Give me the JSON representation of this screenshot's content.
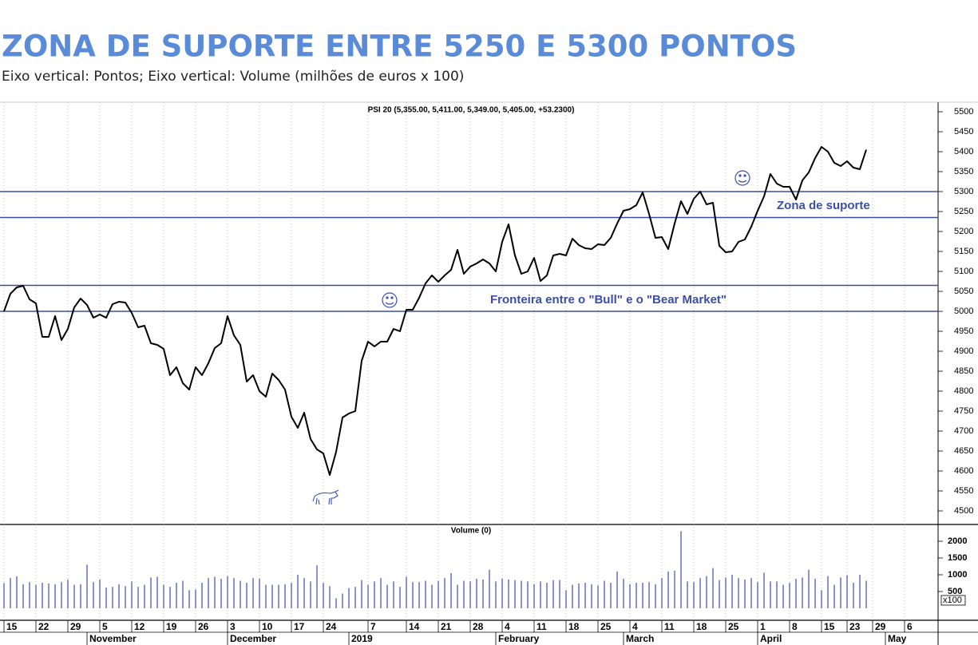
{
  "chart_data": {
    "type": "line",
    "title": "ZONA DE SUPORTE ENTRE 5250 E 5300 PONTOS",
    "subtitle": "Eixo vertical: Pontos; Eixo vertical: Volume (milhões de euros x 100)",
    "header": "PSI 20 (5,355.00, 5,411.00, 5,349.00, 5,405.00, +53.2300)",
    "categories": [
      "15",
      null,
      null,
      null,
      null,
      "22",
      null,
      null,
      null,
      null,
      "29",
      null,
      null,
      null,
      null,
      "5",
      null,
      null,
      null,
      null,
      "12",
      null,
      null,
      null,
      null,
      "19",
      null,
      null,
      null,
      null,
      "26",
      null,
      null,
      null,
      null,
      "3",
      null,
      null,
      null,
      null,
      "10",
      null,
      null,
      null,
      null,
      "17",
      null,
      null,
      null,
      null,
      "24",
      null,
      null,
      null,
      null,
      null,
      null,
      "7",
      null,
      null,
      null,
      null,
      null,
      "14",
      null,
      null,
      null,
      null,
      "21",
      null,
      null,
      null,
      null,
      "28",
      null,
      null,
      null,
      null,
      "4",
      null,
      null,
      null,
      null,
      "11",
      null,
      null,
      null,
      null,
      "18",
      null,
      null,
      null,
      null,
      "25",
      null,
      null,
      null,
      null,
      "4",
      null,
      null,
      null,
      null,
      "11",
      null,
      null,
      null,
      null,
      "18",
      null,
      null,
      null,
      null,
      "25",
      null,
      null,
      null,
      null,
      "1",
      null,
      null,
      null,
      null,
      "8",
      null,
      null,
      null,
      null,
      "15",
      null,
      null,
      null,
      "23",
      null,
      null,
      null,
      "29",
      null,
      null,
      null,
      null,
      "6",
      null,
      null,
      null,
      null
    ],
    "month_labels": [
      null,
      null,
      null,
      null,
      null,
      null,
      null,
      null,
      null,
      null,
      null,
      null,
      null,
      "November",
      null,
      null,
      null,
      null,
      null,
      null,
      null,
      null,
      null,
      null,
      null,
      null,
      null,
      null,
      null,
      null,
      null,
      null,
      null,
      null,
      null,
      "December",
      null,
      null,
      null,
      null,
      null,
      null,
      null,
      null,
      null,
      null,
      null,
      null,
      null,
      null,
      null,
      null,
      null,
      null,
      "2019",
      null,
      null,
      null,
      null,
      null,
      null,
      null,
      null,
      null,
      null,
      null,
      null,
      null,
      null,
      null,
      null,
      null,
      null,
      null,
      null,
      null,
      null,
      "February",
      null,
      null,
      null,
      null,
      null,
      null,
      null,
      null,
      null,
      null,
      null,
      null,
      null,
      null,
      null,
      null,
      null,
      null,
      null,
      "March",
      null,
      null,
      null,
      null,
      null,
      null,
      null,
      null,
      null,
      null,
      null,
      null,
      null,
      null,
      null,
      null,
      null,
      null,
      null,
      null,
      "April",
      null,
      null,
      null,
      null,
      null,
      null,
      null,
      null,
      null,
      null,
      null,
      null,
      null,
      null,
      null,
      null,
      null,
      null,
      null,
      "May",
      null,
      null,
      null,
      null,
      null,
      null,
      null
    ],
    "series": [
      {
        "color": "#000000",
        "values": [
          5000,
          5044,
          5060,
          5064,
          5030,
          5020,
          4936,
          4936,
          4988,
          4928,
          4956,
          5010,
          5032,
          5016,
          4984,
          4992,
          4984,
          5018,
          5024,
          5022,
          4996,
          4960,
          4964,
          4920,
          4916,
          4906,
          4840,
          4860,
          4820,
          4804,
          4860,
          4840,
          4870,
          4908,
          4920,
          4988,
          4940,
          4916,
          4824,
          4840,
          4800,
          4786,
          4844,
          4828,
          4804,
          4736,
          4708,
          4746,
          4680,
          4654,
          4644,
          4590,
          4648,
          4734,
          4744,
          4750,
          4876,
          4924,
          4912,
          4924,
          4924,
          4956,
          4950,
          5004,
          5004,
          5034,
          5070,
          5090,
          5074,
          5090,
          5104,
          5154,
          5094,
          5112,
          5120,
          5130,
          5120,
          5100,
          5174,
          5218,
          5140,
          5094,
          5100,
          5134,
          5076,
          5090,
          5140,
          5144,
          5140,
          5182,
          5166,
          5158,
          5156,
          5168,
          5166,
          5184,
          5220,
          5252,
          5256,
          5266,
          5298,
          5244,
          5184,
          5186,
          5156,
          5220,
          5276,
          5244,
          5282,
          5300,
          5268,
          5272,
          5164,
          5148,
          5150,
          5174,
          5180,
          5212,
          5252,
          5288,
          5344,
          5320,
          5312,
          5312,
          5280,
          5328,
          5348,
          5384,
          5412,
          5400,
          5372,
          5364,
          5376,
          5360,
          5356,
          5405,
          null,
          null,
          null,
          null,
          null,
          null,
          null,
          null,
          null,
          null
        ]
      }
    ],
    "ylim": [
      4470,
      5530
    ],
    "yticks": [
      4500,
      4550,
      4600,
      4650,
      4700,
      4750,
      4800,
      4850,
      4900,
      4950,
      5000,
      5050,
      5100,
      5150,
      5200,
      5250,
      5300,
      5350,
      5400,
      5450,
      5500
    ],
    "grid": true,
    "levels": [
      5300,
      5235,
      5065,
      5000
    ],
    "level_color": "#3a4ea0",
    "annotations": [
      {
        "text": "Zona de suporte"
      },
      {
        "text": "Fronteira entre o \"Bull\" e o \"Bear Market\""
      }
    ],
    "volume": {
      "type": "bar",
      "title": "Volume (0)",
      "unit": "x100",
      "color": "#4a58b8",
      "ylim": [
        0,
        2500
      ],
      "yticks": [
        500,
        1000,
        1500,
        2000
      ],
      "values": [
        750,
        900,
        950,
        720,
        780,
        700,
        760,
        740,
        720,
        780,
        850,
        700,
        720,
        1300,
        780,
        860,
        620,
        640,
        720,
        660,
        800,
        640,
        700,
        920,
        940,
        700,
        640,
        760,
        820,
        540,
        560,
        760,
        900,
        940,
        880,
        960,
        900,
        820,
        760,
        900,
        880,
        700,
        700,
        700,
        720,
        760,
        1000,
        900,
        800,
        1280,
        760,
        660,
        300,
        440,
        600,
        640,
        840,
        700,
        800,
        900,
        700,
        800,
        640,
        940,
        780,
        780,
        820,
        700,
        820,
        900,
        1050,
        700,
        820,
        800,
        880,
        860,
        1150,
        800,
        880,
        860,
        840,
        820,
        800,
        720,
        800,
        760,
        840,
        840,
        540,
        700,
        740,
        760,
        720,
        680,
        820,
        760,
        1100,
        880,
        720,
        760,
        760,
        780,
        720,
        900,
        1100,
        1120,
        2300,
        800,
        780,
        900,
        960,
        1200,
        840,
        920,
        1000,
        900,
        860,
        900,
        780,
        1060,
        800,
        800,
        700,
        760,
        880,
        920,
        1150,
        880,
        540,
        960,
        700,
        920,
        980,
        760,
        1000,
        820,
        null,
        null,
        null,
        null,
        null,
        null,
        null,
        null,
        null,
        null
      ]
    }
  }
}
